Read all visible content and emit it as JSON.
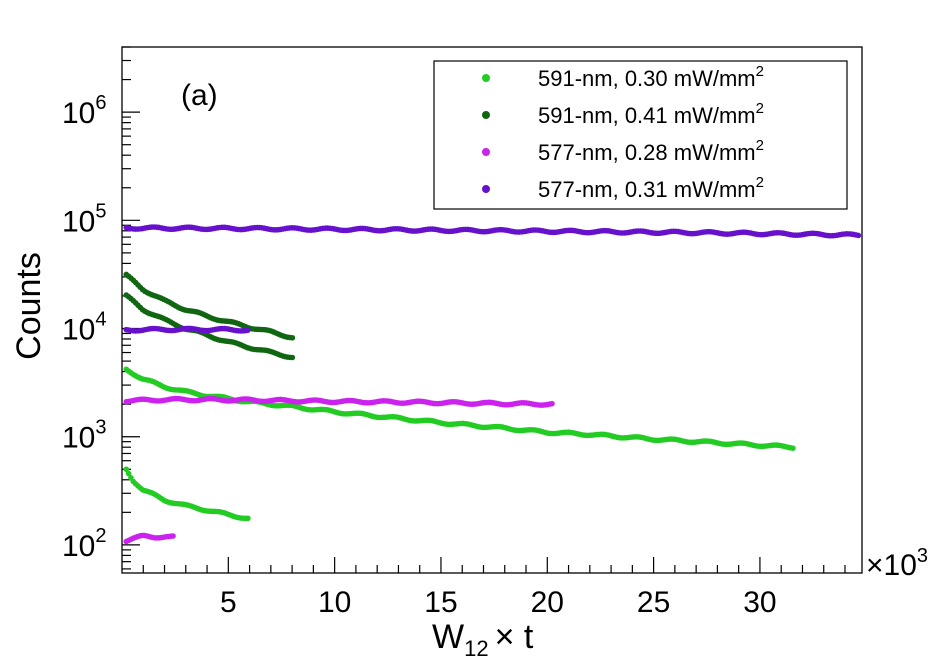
{
  "chart_data": {
    "type": "scatter",
    "panel_label": "(a)",
    "xlabel_main": "W",
    "xlabel_sub": "12",
    "xlabel_tail": "× t",
    "ylabel": "Counts",
    "x_multiplier_label": "×10",
    "x_multiplier_exp": "3",
    "xlim": [
      0,
      34.8
    ],
    "ylim": [
      55,
      4000000
    ],
    "y_scale": "log",
    "grid": false,
    "legend_position": "top-right",
    "x_ticks": [
      5,
      10,
      15,
      20,
      25,
      30
    ],
    "y_ticks": [
      {
        "value": 100,
        "base": "10",
        "exp": "2"
      },
      {
        "value": 1000,
        "base": "10",
        "exp": "3"
      },
      {
        "value": 10000,
        "base": "10",
        "exp": "4"
      },
      {
        "value": 100000,
        "base": "10",
        "exp": "5"
      },
      {
        "value": 1000000,
        "base": "10",
        "exp": "6"
      }
    ],
    "series": [
      {
        "name": "591-nm, 0.30 mW/mm",
        "name_sup": "2",
        "color": "#22cc22",
        "x_max": 31.6,
        "segments": [
          {
            "x": [
              0.2,
              0.5,
              1,
              1.5,
              2,
              3,
              4,
              5,
              6
            ],
            "y": [
              500,
              400,
              320,
              290,
              260,
              230,
              210,
              190,
              175
            ]
          },
          {
            "x": [
              0.2,
              1,
              2,
              3,
              4,
              5,
              6,
              8,
              10,
              12,
              15,
              18,
              20,
              22,
              25,
              28,
              31.6
            ],
            "y": [
              4200,
              3400,
              2900,
              2600,
              2400,
              2250,
              2100,
              1900,
              1700,
              1550,
              1350,
              1200,
              1100,
              1050,
              950,
              880,
              800
            ]
          }
        ]
      },
      {
        "name": "591-nm, 0.41 mW/mm",
        "name_sup": "2",
        "color": "#116611",
        "x_max": 8.1,
        "segments": [
          {
            "x": [
              0.2,
              1,
              2,
              3,
              4,
              5,
              6,
              7,
              8.1
            ],
            "y": [
              31000,
              23000,
              18000,
              15000,
              13000,
              11500,
              10300,
              9300,
              8200
            ]
          },
          {
            "x": [
              0.2,
              1,
              2,
              3,
              4,
              5,
              6,
              7,
              8.1
            ],
            "y": [
              20000,
              15000,
              12000,
              10000,
              8700,
              7500,
              6700,
              6000,
              5400
            ]
          }
        ]
      },
      {
        "name": "577-nm, 0.28 mW/mm",
        "name_sup": "2",
        "color": "#cc22ee",
        "x_max": 20.3,
        "segments": [
          {
            "x": [
              0.2,
              0.5,
              1,
              1.5,
              2,
              2.5
            ],
            "y": [
              110,
              115,
              120,
              118,
              120,
              118
            ]
          },
          {
            "x": [
              0.2,
              2,
              4,
              6,
              8,
              10,
              12,
              14,
              16,
              18,
              20.3
            ],
            "y": [
              2150,
              2200,
              2200,
              2180,
              2150,
              2120,
              2100,
              2080,
              2050,
              2020,
              2000
            ]
          }
        ]
      },
      {
        "name": "577-nm, 0.31 mW/mm",
        "name_sup": "2",
        "color": "#6611cc",
        "x_max": 34.7,
        "segments": [
          {
            "x": [
              0.2,
              2,
              4,
              6
            ],
            "y": [
              9700,
              9800,
              9800,
              9700
            ]
          },
          {
            "x": [
              0.2,
              3,
              6,
              9,
              12,
              15,
              18,
              21,
              24,
              27,
              30,
              34.7
            ],
            "y": [
              85000,
              84500,
              84000,
              83000,
              82000,
              81000,
              80000,
              79000,
              78000,
              77000,
              75500,
              73000
            ]
          }
        ]
      }
    ]
  }
}
